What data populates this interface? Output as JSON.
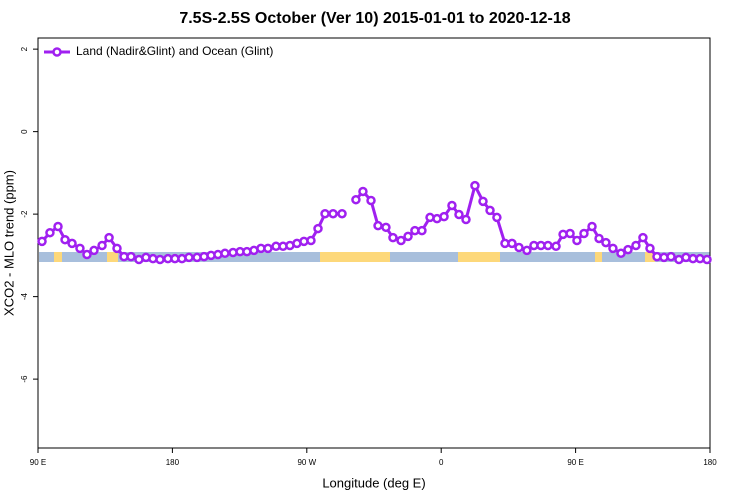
{
  "chart_data": {
    "type": "line",
    "title": "7.5S-2.5S October (Ver 10)   2015-01-01 to 2020-12-18",
    "x_label": "Longitude (deg E)",
    "y_label": "XCO2 - MLO trend (ppm)",
    "xlim": [
      90,
      540
    ],
    "ylim": [
      -7.67,
      2.27
    ],
    "xticks": [
      {
        "value": 90,
        "label": "90 E"
      },
      {
        "value": 180,
        "label": "180"
      },
      {
        "value": 270,
        "label": "90 W"
      },
      {
        "value": 360,
        "label": "0"
      },
      {
        "value": 450,
        "label": "90 E"
      },
      {
        "value": 540,
        "label": "180"
      }
    ],
    "yticks": [
      -6,
      -4,
      -2,
      0,
      2
    ],
    "legend": "top-left",
    "x": [
      92.7,
      98.0,
      103.4,
      108.1,
      112.8,
      118.1,
      122.8,
      127.5,
      132.9,
      137.6,
      142.9,
      147.6,
      152.3,
      157.6,
      162.3,
      167.0,
      171.7,
      177.0,
      181.7,
      186.4,
      191.1,
      196.5,
      201.2,
      205.9,
      210.5,
      215.2,
      220.6,
      225.3,
      229.9,
      234.6,
      239.3,
      244.0,
      249.4,
      254.1,
      258.7,
      263.4,
      268.1,
      272.8,
      277.5,
      282.2,
      287.6,
      293.6,
      298.2,
      302.9,
      307.6,
      313.0,
      317.7,
      323.0,
      327.7,
      333.1,
      337.8,
      342.4,
      347.1,
      352.5,
      357.2,
      361.9,
      367.2,
      371.9,
      376.6,
      382.6,
      388.0,
      392.7,
      397.3,
      402.7,
      407.4,
      412.1,
      417.4,
      422.1,
      426.8,
      431.5,
      436.9,
      441.6,
      446.3,
      450.9,
      455.6,
      461.0,
      465.7,
      470.3,
      475.0,
      480.4,
      485.1,
      490.4,
      495.1,
      499.8,
      504.5,
      509.2,
      513.9,
      519.2,
      523.9,
      528.6,
      533.3,
      538.0
    ],
    "series": [
      {
        "name": "Land (Nadir&Glint) and Ocean (Glint)",
        "color": "#a020f0",
        "values": [
          -2.66,
          -2.45,
          -2.3,
          -2.62,
          -2.71,
          -2.83,
          -2.98,
          -2.88,
          -2.76,
          -2.57,
          -2.83,
          -3.03,
          -3.03,
          -3.1,
          -3.05,
          -3.08,
          -3.1,
          -3.08,
          -3.08,
          -3.08,
          -3.05,
          -3.05,
          -3.03,
          -3.0,
          -2.98,
          -2.95,
          -2.93,
          -2.91,
          -2.91,
          -2.88,
          -2.83,
          -2.83,
          -2.78,
          -2.78,
          -2.76,
          -2.71,
          -2.66,
          -2.64,
          -2.35,
          -1.99,
          -1.99,
          -1.99,
          null,
          -1.65,
          -1.45,
          -1.67,
          -2.28,
          -2.32,
          -2.57,
          -2.64,
          -2.54,
          -2.4,
          -2.4,
          -2.08,
          -2.11,
          -2.06,
          -1.79,
          -2.01,
          -2.13,
          -1.31,
          -1.69,
          -1.91,
          -2.08,
          -2.71,
          -2.71,
          -2.81,
          -2.88,
          -2.76,
          -2.76,
          -2.76,
          -2.78,
          -2.49,
          -2.47,
          -2.64,
          -2.47,
          -2.3,
          -2.59,
          -2.69,
          -2.83,
          -2.95,
          -2.86,
          -2.76,
          -2.57,
          -2.83,
          -3.03,
          -3.05,
          -3.03,
          -3.1,
          -3.05,
          -3.08,
          -3.08,
          -3.1
        ]
      }
    ]
  }
}
